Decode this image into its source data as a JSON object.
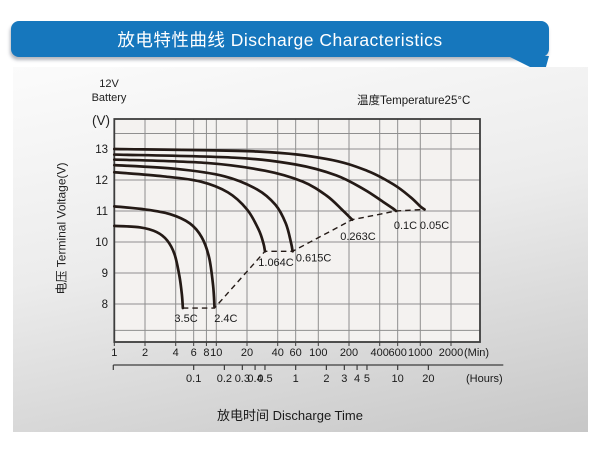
{
  "header": {
    "title": "放电特性曲线 Discharge Characteristics",
    "bg_color": "#1677bd"
  },
  "annotations": {
    "battery_line1": "12V",
    "battery_line2": "Battery",
    "temperature": "温度Temperature25°C"
  },
  "footer": {
    "xlabel": "放电时间 Discharge Time"
  },
  "chart_data": {
    "type": "line",
    "title": "放电特性曲线 Discharge Characteristics",
    "line_color": "#241a16",
    "grid_color": "#8f8f8f",
    "plot_bg": "#f4f2f0",
    "x_axis": {
      "scale": "log",
      "ticks_min": [
        1,
        2,
        4,
        6,
        8,
        10,
        20,
        40,
        60,
        100,
        200,
        400,
        600,
        1000,
        2000
      ],
      "unit_min": "(Min)",
      "ticks_hours": [
        0.1,
        0.2,
        0.3,
        0.4,
        0.5,
        1,
        2,
        3,
        4,
        5,
        10,
        20
      ],
      "unit_hours": "(Hours)",
      "range_min": [
        1,
        3850
      ]
    },
    "y_axis": {
      "title": "电压 Terminal Voltage(V)",
      "unit": "(V)",
      "ticks": [
        13,
        12,
        11,
        10,
        9,
        8
      ],
      "extra_gridlines": [
        13.5,
        7.15
      ],
      "range": [
        6.8,
        13.97
      ]
    },
    "series": [
      {
        "name": "0.05C",
        "label_at": [
          1380,
          10.55
        ],
        "points": [
          [
            1,
            13.0
          ],
          [
            25,
            12.92
          ],
          [
            120,
            12.68
          ],
          [
            300,
            12.3
          ],
          [
            550,
            11.85
          ],
          [
            800,
            11.45
          ],
          [
            1000,
            11.15
          ],
          [
            1100,
            11.05
          ]
        ]
      },
      {
        "name": "0.1C",
        "label_at": [
          716,
          10.55
        ],
        "points": [
          [
            1,
            12.82
          ],
          [
            15,
            12.72
          ],
          [
            60,
            12.5
          ],
          [
            150,
            12.15
          ],
          [
            280,
            11.7
          ],
          [
            430,
            11.3
          ],
          [
            540,
            11.08
          ],
          [
            578,
            11.0
          ]
        ]
      },
      {
        "name": "0.263C",
        "label_at": [
          245,
          10.2
        ],
        "points": [
          [
            1,
            12.66
          ],
          [
            8,
            12.55
          ],
          [
            30,
            12.3
          ],
          [
            70,
            11.95
          ],
          [
            120,
            11.5
          ],
          [
            170,
            11.05
          ],
          [
            200,
            10.82
          ],
          [
            215,
            10.72
          ]
        ]
      },
      {
        "name": "0.615C",
        "label_at": [
          90,
          9.5
        ],
        "points": [
          [
            1,
            12.48
          ],
          [
            4,
            12.36
          ],
          [
            12,
            12.12
          ],
          [
            25,
            11.7
          ],
          [
            38,
            11.2
          ],
          [
            48,
            10.6
          ],
          [
            54,
            9.98
          ],
          [
            56,
            9.7
          ]
        ]
      },
      {
        "name": "1.064C",
        "label_at": [
          38.5,
          9.35
        ],
        "points": [
          [
            1,
            12.25
          ],
          [
            3,
            12.12
          ],
          [
            7,
            11.95
          ],
          [
            13,
            11.6
          ],
          [
            20,
            11.05
          ],
          [
            26,
            10.4
          ],
          [
            29,
            9.95
          ],
          [
            30,
            9.7
          ]
        ]
      },
      {
        "name": "2.4C",
        "label_at": [
          12.4,
          7.55
        ],
        "points": [
          [
            1,
            11.15
          ],
          [
            2,
            11.05
          ],
          [
            3.5,
            10.9
          ],
          [
            5.5,
            10.6
          ],
          [
            7.2,
            10.15
          ],
          [
            8.5,
            9.5
          ],
          [
            9.3,
            8.6
          ],
          [
            9.6,
            7.9
          ]
        ]
      },
      {
        "name": "3.5C",
        "label_at": [
          5.05,
          7.55
        ],
        "points": [
          [
            1,
            10.52
          ],
          [
            1.8,
            10.47
          ],
          [
            2.6,
            10.32
          ],
          [
            3.3,
            10.05
          ],
          [
            3.9,
            9.6
          ],
          [
            4.35,
            8.9
          ],
          [
            4.6,
            8.3
          ],
          [
            4.7,
            7.87
          ]
        ]
      }
    ],
    "cutoff_line": {
      "style": "dashed",
      "points": [
        [
          4.7,
          7.87
        ],
        [
          9.6,
          7.87
        ],
        [
          30,
          9.7
        ],
        [
          56,
          9.7
        ],
        [
          215,
          10.72
        ],
        [
          578,
          11.0
        ],
        [
          1100,
          11.05
        ]
      ]
    }
  }
}
